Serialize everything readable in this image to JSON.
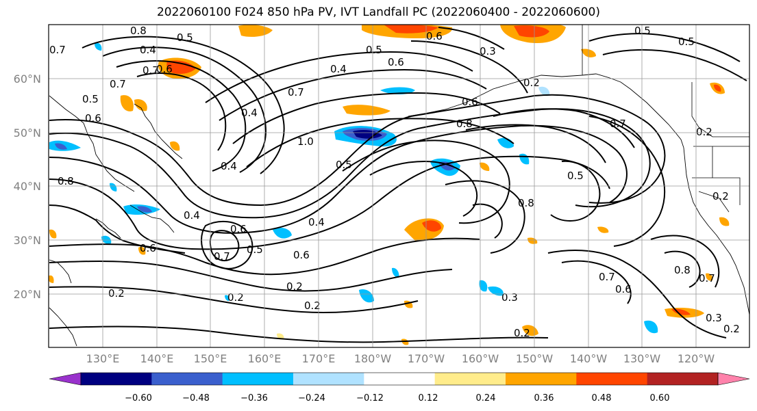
{
  "title": "2022060100 F024 850 hPa PV, IVT Landfall PC (2022060400 - 2022060600)",
  "lat_ticks": [
    "60°N",
    "50°N",
    "40°N",
    "30°N",
    "20°N"
  ],
  "lon_ticks": [
    "130°E",
    "140°E",
    "150°E",
    "160°E",
    "170°E",
    "180°W",
    "170°W",
    "160°W",
    "150°W",
    "140°W",
    "130°W",
    "120°W"
  ],
  "colorbar": {
    "ticks": [
      "−0.60",
      "−0.48",
      "−0.36",
      "−0.24",
      "−0.12",
      "0.12",
      "0.24",
      "0.36",
      "0.48",
      "0.60"
    ],
    "colors": [
      "#9932cc",
      "#000080",
      "#3a5fcd",
      "#00bfff",
      "#b0e2ff",
      "#ffffff",
      "#ffec8b",
      "#ffa500",
      "#ff4500",
      "#b22222",
      "#ff82ab"
    ]
  },
  "contour_labels": [
    "0.8",
    "0.5",
    "0.4",
    "0.7",
    "0.6",
    "0.5",
    "0.6",
    "0.7",
    "0.4",
    "0.7",
    "1.0",
    "0.5",
    "0.4",
    "0.8",
    "0.6",
    "0.5",
    "0.3",
    "0.6",
    "0.2",
    "0.5",
    "0.6",
    "0.4",
    "0.8",
    "0.5",
    "0.7",
    "0.4",
    "0.6",
    "0.4",
    "0.6",
    "0.7",
    "0.5",
    "0.6",
    "0.2",
    "0.2",
    "0.2",
    "0.2",
    "0.3",
    "0.2",
    "0.7",
    "0.6",
    "0.8",
    "0.7",
    "0.3",
    "0.2",
    "0.7",
    "0.2",
    "0.2",
    "0.5",
    "0.8"
  ]
}
